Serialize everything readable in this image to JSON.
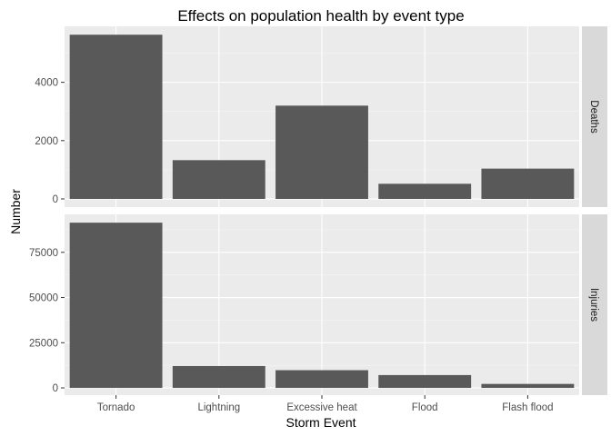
{
  "chart_data": {
    "type": "bar",
    "title": "Effects on population health by event type",
    "xlabel": "Storm Event",
    "ylabel": "Number",
    "categories": [
      "Tornado",
      "Lightning",
      "Excessive heat",
      "Flood",
      "Flash flood"
    ],
    "facets": [
      {
        "name": "Deaths",
        "values": [
          5633,
          1330,
          3200,
          520,
          1040
        ],
        "ylim": [
          -280,
          5920
        ],
        "yticks": [
          0,
          2000,
          4000
        ],
        "ytick_labels": [
          "0",
          "2000",
          "4000"
        ]
      },
      {
        "name": "Injuries",
        "values": [
          91400,
          12100,
          9800,
          7100,
          2200
        ],
        "ylim": [
          -4000,
          96000
        ],
        "yticks": [
          0,
          25000,
          50000,
          75000
        ],
        "ytick_labels": [
          "0",
          "25000",
          "50000",
          "75000"
        ]
      }
    ],
    "colors": {
      "bar": "#595959",
      "panel_background": "#ebebeb",
      "grid_major": "#ffffff",
      "grid_minor": "#f5f5f5",
      "strip_background": "#d9d9d9",
      "tick": "#333333"
    }
  }
}
